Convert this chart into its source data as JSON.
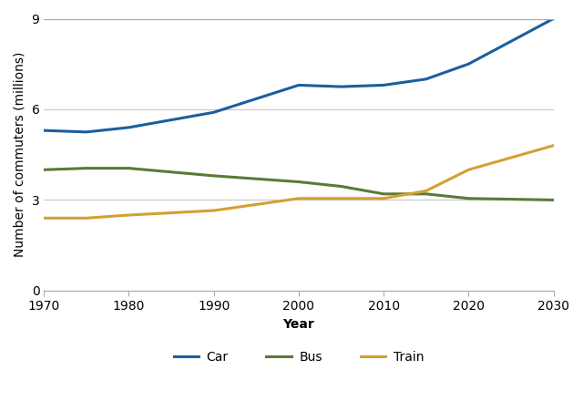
{
  "years": [
    1970,
    1975,
    1980,
    1990,
    2000,
    2005,
    2010,
    2015,
    2020,
    2030
  ],
  "car": [
    5.3,
    5.25,
    5.4,
    5.9,
    6.8,
    6.75,
    6.8,
    7.0,
    7.5,
    9.0
  ],
  "bus": [
    4.0,
    4.05,
    4.05,
    3.8,
    3.6,
    3.45,
    3.2,
    3.2,
    3.05,
    3.0
  ],
  "train": [
    2.4,
    2.4,
    2.5,
    2.65,
    3.05,
    3.05,
    3.05,
    3.3,
    4.0,
    4.8
  ],
  "car_color": "#1a5f9e",
  "bus_color": "#5a7a35",
  "train_color": "#d4a030",
  "background_color": "#ffffff",
  "grid_color": "#c8c8c8",
  "xlabel": "Year",
  "ylabel": "Number of commuters (millions)",
  "xlim": [
    1970,
    2030
  ],
  "ylim": [
    0,
    9
  ],
  "yticks": [
    0,
    3,
    6,
    9
  ],
  "xticks": [
    1970,
    1980,
    1990,
    2000,
    2010,
    2020,
    2030
  ],
  "legend_labels": [
    "Car",
    "Bus",
    "Train"
  ],
  "line_width": 2.2,
  "axis_fontsize": 10,
  "tick_fontsize": 10,
  "legend_fontsize": 10
}
